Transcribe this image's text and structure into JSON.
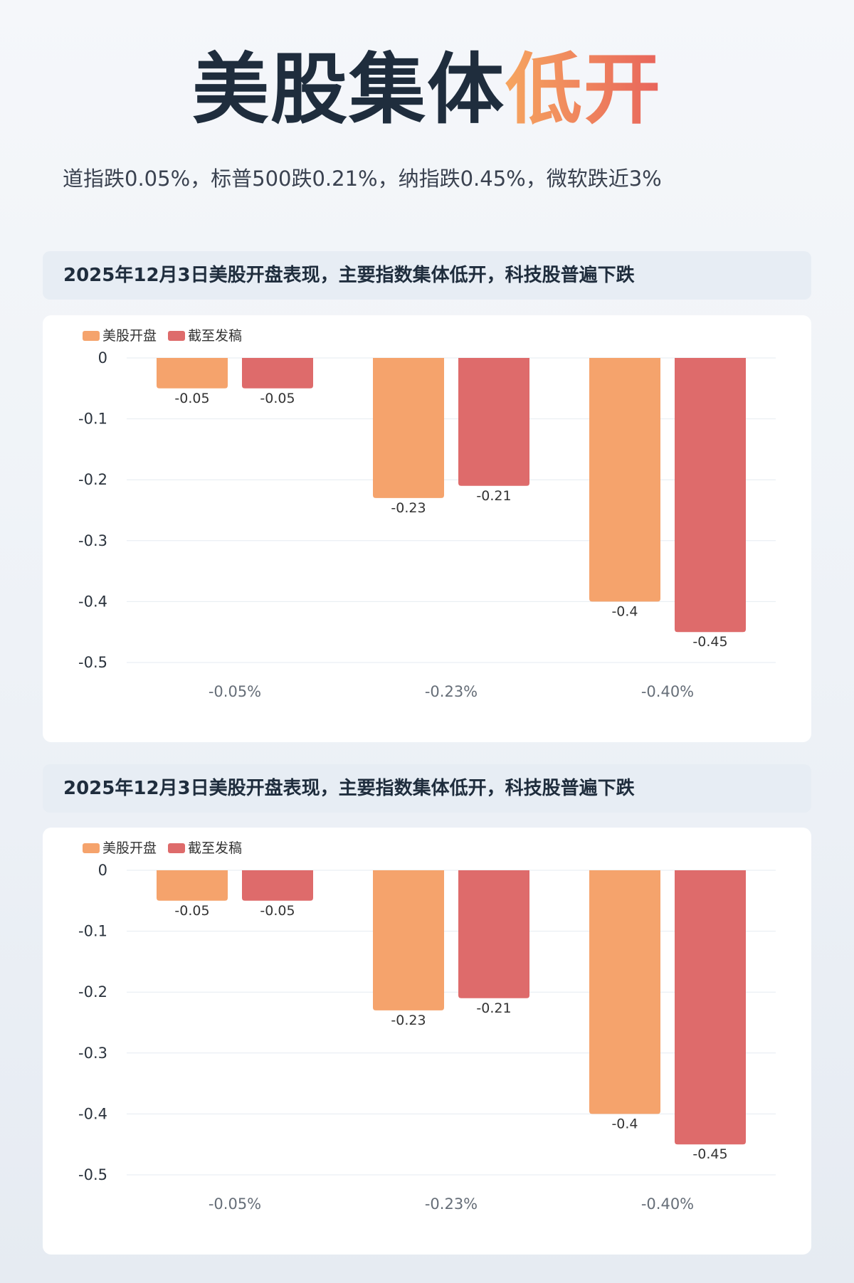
{
  "title": {
    "part1": "美股集体",
    "part2": "低开"
  },
  "subtitle": "道指跌0.05%，标普500跌0.21%，纳指跌0.45%，微软跌近3%",
  "colors": {
    "series1": "#f5a36c",
    "series2": "#de6b6b",
    "grid": "#e6ebf1",
    "axis_text": "#2b333d",
    "cat_text": "#666e78"
  },
  "sections": [
    {
      "header": "2025年12月3日美股开盘表现，主要指数集体低开，科技股普遍下跌"
    },
    {
      "header": "2025年12月3日美股开盘表现，主要指数集体低开，科技股普遍下跌"
    }
  ],
  "chart_data": [
    {
      "type": "bar",
      "categories": [
        "-0.05%",
        "-0.23%",
        "-0.40%"
      ],
      "series": [
        {
          "name": "美股开盘",
          "values": [
            -0.05,
            -0.23,
            -0.4
          ],
          "labels": [
            "-0.05",
            "-0.23",
            "-0.4"
          ]
        },
        {
          "name": "截至发稿",
          "values": [
            -0.05,
            -0.21,
            -0.45
          ],
          "labels": [
            "-0.05",
            "-0.21",
            "-0.45"
          ]
        }
      ],
      "yticks": [
        "0",
        "-0.1",
        "-0.2",
        "-0.3",
        "-0.4",
        "-0.5"
      ],
      "ylim": [
        -0.5,
        0
      ],
      "grid": true,
      "legend": "top-left"
    },
    {
      "type": "bar",
      "categories": [
        "-0.05%",
        "-0.23%",
        "-0.40%"
      ],
      "series": [
        {
          "name": "美股开盘",
          "values": [
            -0.05,
            -0.23,
            -0.4
          ],
          "labels": [
            "-0.05",
            "-0.23",
            "-0.4"
          ]
        },
        {
          "name": "截至发稿",
          "values": [
            -0.05,
            -0.21,
            -0.45
          ],
          "labels": [
            "-0.05",
            "-0.21",
            "-0.45"
          ]
        }
      ],
      "yticks": [
        "0",
        "-0.1",
        "-0.2",
        "-0.3",
        "-0.4",
        "-0.5"
      ],
      "ylim": [
        -0.5,
        0
      ],
      "grid": true,
      "legend": "top-left"
    }
  ]
}
